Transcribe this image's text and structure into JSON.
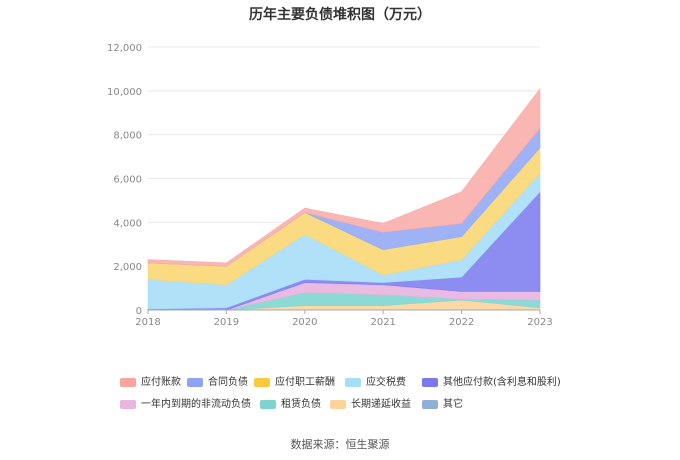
{
  "chart_data": {
    "type": "area",
    "title": "历年主要负债堆积图（万元）",
    "x": [
      "2018",
      "2019",
      "2020",
      "2021",
      "2022",
      "2023"
    ],
    "ylim": [
      0,
      12000
    ],
    "yticks": [
      "0",
      "2,000",
      "4,000",
      "6,000",
      "8,000",
      "10,000",
      "12,000"
    ],
    "stacked": true,
    "grid": true,
    "legend_position": "bottom",
    "series": [
      {
        "name": "长期递延收益",
        "color": "#fbd49c",
        "values": [
          0,
          0,
          200,
          200,
          450,
          100
        ]
      },
      {
        "name": "租赁负债",
        "color": "#7fd6d2",
        "values": [
          0,
          0,
          600,
          500,
          50,
          350
        ]
      },
      {
        "name": "一年内到期的非流动负债",
        "color": "#e7b3e0",
        "values": [
          0,
          0,
          450,
          450,
          350,
          400
        ]
      },
      {
        "name": "其他应付款(含利息和股利)",
        "color": "#7f7ff0",
        "values": [
          50,
          100,
          150,
          100,
          650,
          4550
        ]
      },
      {
        "name": "应交税费",
        "color": "#a7def7",
        "values": [
          1350,
          1050,
          2050,
          350,
          800,
          850
        ]
      },
      {
        "name": "应付职工薪酬",
        "color": "#fbd774",
        "values": [
          750,
          850,
          1000,
          1150,
          1050,
          1150
        ]
      },
      {
        "name": "合同负债",
        "color": "#96aaf5",
        "values": [
          0,
          0,
          0,
          800,
          600,
          900
        ]
      },
      {
        "name": "其它",
        "color": "#8fb0dc",
        "values": [
          0,
          0,
          0,
          0,
          0,
          0
        ]
      },
      {
        "name": "应付账款",
        "color": "#f9aeaa",
        "values": [
          150,
          150,
          200,
          400,
          1450,
          1800
        ]
      }
    ]
  },
  "legend": [
    {
      "label": "应付账款",
      "color": "#f8a49f"
    },
    {
      "label": "合同负债",
      "color": "#8ea4f3"
    },
    {
      "label": "应付职工薪酬",
      "color": "#fbc93f"
    },
    {
      "label": "应交税费",
      "color": "#a6def8"
    },
    {
      "label": "其他应付款(含利息和股利)",
      "color": "#7a78ea"
    },
    {
      "label": "一年内到期的非流动负债",
      "color": "#e8b4e0"
    },
    {
      "label": "租赁负债",
      "color": "#7fd3cf"
    },
    {
      "label": "长期递延收益",
      "color": "#fcd49b"
    },
    {
      "label": "其它",
      "color": "#8fafd9"
    }
  ],
  "source": "数据来源：恒生聚源"
}
